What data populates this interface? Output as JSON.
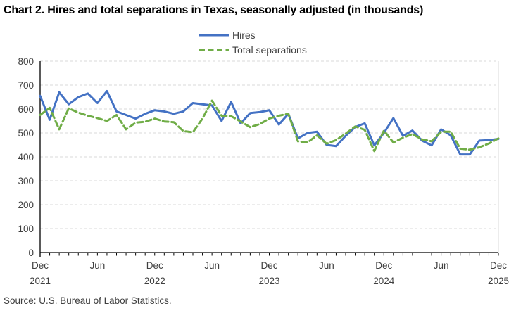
{
  "page": {
    "title": "Chart 2. Hires and total separations in Texas, seasonally adjusted (in thousands)",
    "source": "Source: U.S. Bureau of Labor Statistics."
  },
  "legend": {
    "items": [
      {
        "label": "Hires",
        "color": "#4472C4",
        "line_style": "solid"
      },
      {
        "label": "Total separations",
        "color": "#70AD47",
        "line_style": "dashed"
      }
    ]
  },
  "colors": {
    "hires_line": "#4472C4",
    "separations_line": "#70AD47",
    "gridline": "#d9d9d9",
    "axis": "#000000",
    "axis_text": "#404040"
  },
  "chart_data": {
    "type": "line",
    "title": "Chart 2. Hires and total separations in Texas, seasonally adjusted (in thousands)",
    "ylim": [
      0,
      800
    ],
    "ytick_step": 100,
    "y_tick_labels": [
      "0",
      "100",
      "200",
      "300",
      "400",
      "500",
      "600",
      "700",
      "800"
    ],
    "grid": "horizontal-dashed",
    "legend_position": "top-center",
    "x": [
      "Dec 2021",
      "Jan 2022",
      "Feb 2022",
      "Mar 2022",
      "Apr 2022",
      "May 2022",
      "Jun 2022",
      "Jul 2022",
      "Aug 2022",
      "Sep 2022",
      "Oct 2022",
      "Nov 2022",
      "Dec 2022",
      "Jan 2023",
      "Feb 2023",
      "Mar 2023",
      "Apr 2023",
      "May 2023",
      "Jun 2023",
      "Jul 2023",
      "Aug 2023",
      "Sep 2023",
      "Oct 2023",
      "Nov 2023",
      "Dec 2023",
      "Jan 2024",
      "Feb 2024",
      "Mar 2024",
      "Apr 2024",
      "May 2024",
      "Jun 2024",
      "Jul 2024",
      "Aug 2024",
      "Sep 2024",
      "Oct 2024",
      "Nov 2024",
      "Dec 2024",
      "Jan 2025",
      "Feb 2025",
      "Mar 2025",
      "Apr 2025",
      "May 2025",
      "Jun 2025",
      "Jul 2025",
      "Aug 2025",
      "Sep 2025",
      "Oct 2025",
      "Nov 2025",
      "Dec 2025"
    ],
    "x_tick_labels": [
      {
        "index": 0,
        "month": "Dec",
        "year": "2021"
      },
      {
        "index": 6,
        "month": "Jun",
        "year": ""
      },
      {
        "index": 12,
        "month": "Dec",
        "year": "2022"
      },
      {
        "index": 18,
        "month": "Jun",
        "year": ""
      },
      {
        "index": 24,
        "month": "Dec",
        "year": "2023"
      },
      {
        "index": 30,
        "month": "Jun",
        "year": ""
      },
      {
        "index": 36,
        "month": "Dec",
        "year": "2024"
      },
      {
        "index": 42,
        "month": "Jun",
        "year": ""
      },
      {
        "index": 48,
        "month": "Dec",
        "year": "2025"
      }
    ],
    "series": [
      {
        "name": "Hires",
        "color": "#4472C4",
        "style": "solid",
        "values": [
          655,
          555,
          670,
          620,
          650,
          665,
          625,
          675,
          590,
          575,
          560,
          580,
          595,
          590,
          580,
          590,
          625,
          620,
          615,
          550,
          630,
          540,
          583,
          587,
          595,
          535,
          580,
          477,
          500,
          505,
          450,
          445,
          488,
          525,
          540,
          448,
          500,
          562,
          488,
          510,
          468,
          448,
          515,
          490,
          410,
          410,
          468,
          470,
          475
        ]
      },
      {
        "name": "Total separations",
        "color": "#70AD47",
        "style": "dashed",
        "values": [
          575,
          605,
          515,
          603,
          585,
          572,
          562,
          550,
          575,
          515,
          543,
          547,
          560,
          548,
          545,
          508,
          503,
          560,
          635,
          572,
          570,
          548,
          524,
          537,
          560,
          572,
          580,
          465,
          460,
          490,
          455,
          470,
          497,
          527,
          513,
          424,
          510,
          460,
          480,
          495,
          473,
          465,
          505,
          505,
          434,
          430,
          440,
          456,
          477
        ]
      }
    ]
  }
}
